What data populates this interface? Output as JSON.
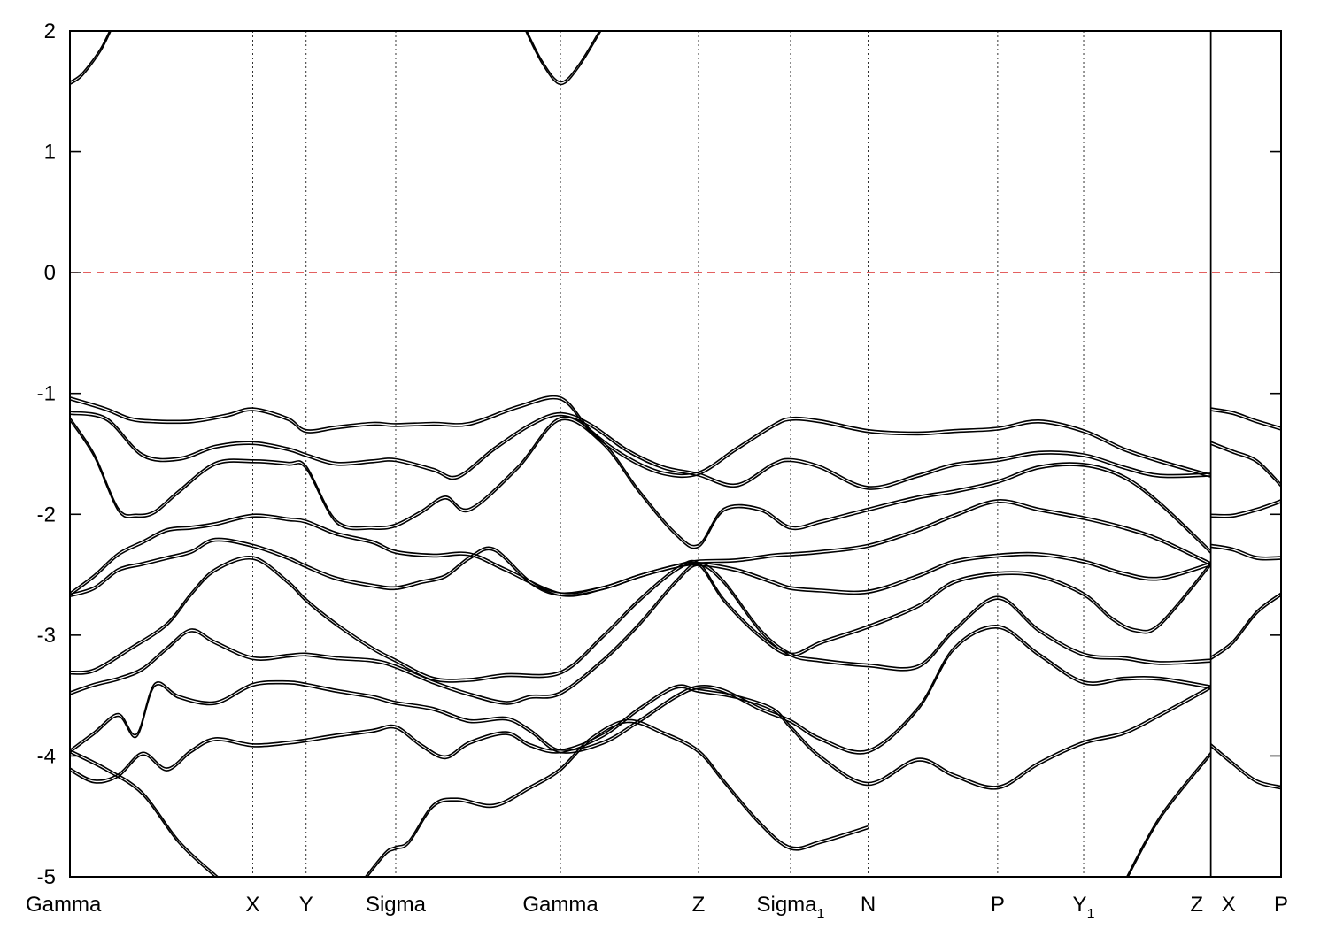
{
  "chart_data": {
    "type": "line",
    "title": "",
    "xlabel": "",
    "ylabel": "",
    "xlim": [
      0,
      1
    ],
    "ylim": [
      -5,
      2
    ],
    "y_ticks": [
      -5,
      -4,
      -3,
      -2,
      -1,
      0,
      1,
      2
    ],
    "grid": false,
    "fermi_level": 0,
    "colors": {
      "bands": "#000000",
      "fermi": "#d40000"
    },
    "high_symmetry_points": [
      {
        "label": "Gamma",
        "sub": "",
        "x": 0.0
      },
      {
        "label": "X",
        "sub": "",
        "x": 0.151
      },
      {
        "label": "Y",
        "sub": "",
        "x": 0.195
      },
      {
        "label": "Sigma",
        "sub": "",
        "x": 0.269
      },
      {
        "label": "Gamma",
        "sub": "",
        "x": 0.405
      },
      {
        "label": "Z",
        "sub": "",
        "x": 0.519
      },
      {
        "label": "Sigma",
        "sub": "1",
        "x": 0.595
      },
      {
        "label": "N",
        "sub": "",
        "x": 0.659
      },
      {
        "label": "P",
        "sub": "",
        "x": 0.766
      },
      {
        "label": "Y",
        "sub": "1",
        "x": 0.837
      },
      {
        "label": "Z",
        "sub": "",
        "x": 0.942
      },
      {
        "label": "X",
        "sub": "",
        "x": 0.942
      },
      {
        "label": "P",
        "sub": "",
        "x": 1.0
      }
    ],
    "discontinuity_x": 0.942,
    "series": [
      {
        "x": [
          0,
          0.03,
          0.05,
          0.07,
          0.1,
          0.13,
          0.151,
          0.18,
          0.195,
          0.22,
          0.25,
          0.269,
          0.3,
          0.33,
          0.37,
          0.405,
          0.43,
          0.46,
          0.49,
          0.519,
          0.55,
          0.58,
          0.595,
          0.62,
          0.659,
          0.7,
          0.73,
          0.766,
          0.8,
          0.837,
          0.87,
          0.9,
          0.942
        ],
        "y": [
          -1.03,
          -1.12,
          -1.2,
          -1.22,
          -1.22,
          -1.17,
          -1.12,
          -1.2,
          -1.3,
          -1.27,
          -1.24,
          -1.25,
          -1.24,
          -1.24,
          -1.1,
          -1.03,
          -1.3,
          -1.52,
          -1.65,
          -1.65,
          -1.45,
          -1.26,
          -1.2,
          -1.22,
          -1.3,
          -1.32,
          -1.3,
          -1.28,
          -1.22,
          -1.3,
          -1.45,
          -1.55,
          -1.67
        ]
      },
      {
        "x": [
          0,
          0.03,
          0.06,
          0.09,
          0.12,
          0.151,
          0.18,
          0.195,
          0.22,
          0.25,
          0.269,
          0.3,
          0.32,
          0.35,
          0.38,
          0.405,
          0.43,
          0.46,
          0.49,
          0.519,
          0.55,
          0.58,
          0.595,
          0.62,
          0.659,
          0.7,
          0.73,
          0.766,
          0.8,
          0.837,
          0.87,
          0.9,
          0.942
        ],
        "y": [
          -1.15,
          -1.2,
          -1.5,
          -1.53,
          -1.43,
          -1.4,
          -1.45,
          -1.5,
          -1.57,
          -1.55,
          -1.54,
          -1.62,
          -1.68,
          -1.45,
          -1.25,
          -1.16,
          -1.25,
          -1.46,
          -1.6,
          -1.66,
          -1.75,
          -1.58,
          -1.54,
          -1.6,
          -1.77,
          -1.67,
          -1.58,
          -1.54,
          -1.48,
          -1.5,
          -1.6,
          -1.67,
          -1.66
        ]
      },
      {
        "x": [
          0,
          0.02,
          0.04,
          0.055,
          0.07,
          0.09,
          0.12,
          0.151,
          0.18,
          0.195,
          0.22,
          0.25,
          0.269,
          0.29,
          0.31,
          0.33,
          0.37,
          0.405,
          0.44,
          0.47,
          0.5,
          0.519,
          0.54,
          0.57,
          0.595,
          0.62,
          0.659,
          0.7,
          0.73,
          0.766,
          0.8,
          0.837,
          0.87,
          0.9,
          0.942
        ],
        "y": [
          -1.2,
          -1.5,
          -1.95,
          -2.0,
          -1.97,
          -1.8,
          -1.57,
          -1.55,
          -1.57,
          -1.6,
          -2.05,
          -2.1,
          -2.08,
          -1.97,
          -1.85,
          -1.95,
          -1.6,
          -1.2,
          -1.4,
          -1.8,
          -2.15,
          -2.25,
          -1.95,
          -1.95,
          -2.1,
          -2.05,
          -1.95,
          -1.85,
          -1.8,
          -1.72,
          -1.6,
          -1.58,
          -1.68,
          -1.9,
          -2.3
        ]
      },
      {
        "x": [
          0,
          0.02,
          0.04,
          0.06,
          0.08,
          0.1,
          0.12,
          0.151,
          0.18,
          0.195,
          0.22,
          0.25,
          0.269,
          0.3,
          0.33,
          0.36,
          0.405,
          0.44,
          0.47,
          0.5,
          0.519,
          0.55,
          0.58,
          0.595,
          0.62,
          0.659,
          0.7,
          0.73,
          0.766,
          0.8,
          0.837,
          0.87,
          0.9,
          0.942
        ],
        "y": [
          -2.65,
          -2.5,
          -2.32,
          -2.22,
          -2.12,
          -2.1,
          -2.07,
          -2.0,
          -2.03,
          -2.05,
          -2.15,
          -2.22,
          -2.3,
          -2.33,
          -2.32,
          -2.45,
          -2.65,
          -2.6,
          -2.5,
          -2.42,
          -2.38,
          -2.37,
          -2.33,
          -2.32,
          -2.3,
          -2.25,
          -2.12,
          -2.0,
          -1.88,
          -1.95,
          -2.02,
          -2.1,
          -2.2,
          -2.4
        ]
      },
      {
        "x": [
          0,
          0.02,
          0.04,
          0.06,
          0.08,
          0.1,
          0.12,
          0.151,
          0.18,
          0.195,
          0.22,
          0.25,
          0.269,
          0.29,
          0.31,
          0.33,
          0.35,
          0.38,
          0.405,
          0.44,
          0.47,
          0.5,
          0.519,
          0.55,
          0.58,
          0.595,
          0.62,
          0.659,
          0.7,
          0.73,
          0.766,
          0.8,
          0.837,
          0.87,
          0.9,
          0.942
        ],
        "y": [
          -2.66,
          -2.6,
          -2.45,
          -2.4,
          -2.35,
          -2.3,
          -2.2,
          -2.25,
          -2.35,
          -2.42,
          -2.52,
          -2.58,
          -2.6,
          -2.55,
          -2.5,
          -2.35,
          -2.28,
          -2.55,
          -2.65,
          -2.6,
          -2.5,
          -2.42,
          -2.4,
          -2.45,
          -2.55,
          -2.6,
          -2.62,
          -2.63,
          -2.5,
          -2.38,
          -2.33,
          -2.32,
          -2.38,
          -2.48,
          -2.52,
          -2.4
        ]
      },
      {
        "x": [
          0,
          0.02,
          0.05,
          0.08,
          0.1,
          0.12,
          0.151,
          0.18,
          0.195,
          0.22,
          0.25,
          0.269,
          0.3,
          0.33,
          0.36,
          0.405,
          0.44,
          0.47,
          0.5,
          0.519,
          0.54,
          0.57,
          0.595,
          0.62,
          0.659,
          0.7,
          0.73,
          0.766,
          0.8,
          0.837,
          0.86,
          0.88,
          0.9,
          0.942
        ],
        "y": [
          -3.3,
          -3.28,
          -3.1,
          -2.9,
          -2.65,
          -2.45,
          -2.35,
          -2.55,
          -2.7,
          -2.9,
          -3.1,
          -3.2,
          -3.35,
          -3.36,
          -3.32,
          -3.3,
          -3.0,
          -2.7,
          -2.45,
          -2.4,
          -2.7,
          -3.0,
          -3.15,
          -3.05,
          -2.92,
          -2.75,
          -2.55,
          -2.48,
          -2.5,
          -2.65,
          -2.85,
          -2.95,
          -2.9,
          -2.4
        ]
      },
      {
        "x": [
          0,
          0.02,
          0.04,
          0.06,
          0.08,
          0.1,
          0.12,
          0.151,
          0.18,
          0.195,
          0.22,
          0.25,
          0.269,
          0.3,
          0.33,
          0.36,
          0.38,
          0.405,
          0.44,
          0.47,
          0.5,
          0.519,
          0.54,
          0.57,
          0.595,
          0.62,
          0.659,
          0.7,
          0.73,
          0.766,
          0.8,
          0.837,
          0.87,
          0.9,
          0.942
        ],
        "y": [
          -3.47,
          -3.4,
          -3.35,
          -3.27,
          -3.1,
          -2.95,
          -3.05,
          -3.18,
          -3.16,
          -3.15,
          -3.18,
          -3.2,
          -3.25,
          -3.38,
          -3.48,
          -3.55,
          -3.5,
          -3.47,
          -3.2,
          -2.9,
          -2.55,
          -2.4,
          -2.55,
          -2.95,
          -3.15,
          -3.2,
          -3.24,
          -3.25,
          -2.95,
          -2.68,
          -2.95,
          -3.15,
          -3.18,
          -3.22,
          -3.2
        ]
      },
      {
        "x": [
          0,
          0.02,
          0.04,
          0.055,
          0.07,
          0.09,
          0.12,
          0.151,
          0.18,
          0.195,
          0.22,
          0.25,
          0.269,
          0.3,
          0.33,
          0.36,
          0.38,
          0.405,
          0.44,
          0.47,
          0.5,
          0.519,
          0.54,
          0.57,
          0.595,
          0.62,
          0.659,
          0.7,
          0.73,
          0.766,
          0.8,
          0.837,
          0.87,
          0.9,
          0.942
        ],
        "y": [
          -3.95,
          -3.8,
          -3.65,
          -3.82,
          -3.4,
          -3.5,
          -3.55,
          -3.4,
          -3.38,
          -3.4,
          -3.45,
          -3.5,
          -3.55,
          -3.6,
          -3.7,
          -3.68,
          -3.78,
          -3.95,
          -3.88,
          -3.7,
          -3.5,
          -3.42,
          -3.45,
          -3.6,
          -3.7,
          -3.85,
          -3.95,
          -3.6,
          -3.1,
          -2.92,
          -3.15,
          -3.38,
          -3.35,
          -3.35,
          -3.42
        ]
      },
      {
        "x": [
          0,
          0.02,
          0.04,
          0.06,
          0.08,
          0.1,
          0.12,
          0.151,
          0.18,
          0.195,
          0.22,
          0.25,
          0.269,
          0.29,
          0.31,
          0.33,
          0.36,
          0.38,
          0.405,
          0.44,
          0.47,
          0.5,
          0.519,
          0.55,
          0.58,
          0.595,
          0.62,
          0.659,
          0.7,
          0.73,
          0.766,
          0.8,
          0.837,
          0.87,
          0.9,
          0.942
        ],
        "y": [
          -4.1,
          -4.2,
          -4.15,
          -3.97,
          -4.1,
          -3.95,
          -3.85,
          -3.9,
          -3.88,
          -3.86,
          -3.82,
          -3.78,
          -3.75,
          -3.9,
          -4.0,
          -3.88,
          -3.8,
          -3.9,
          -3.95,
          -3.82,
          -3.6,
          -3.42,
          -3.45,
          -3.5,
          -3.6,
          -3.75,
          -4.0,
          -4.22,
          -4.02,
          -4.15,
          -4.25,
          -4.05,
          -3.88,
          -3.8,
          -3.65,
          -3.42
        ]
      },
      {
        "x": [
          0,
          0.03,
          0.06,
          0.09,
          0.12,
          0.13
        ],
        "y": [
          -3.95,
          -4.1,
          -4.3,
          -4.7,
          -4.98,
          -5.05
        ]
      },
      {
        "x": [
          0.24,
          0.26,
          0.269,
          0.28,
          0.3,
          0.32,
          0.35,
          0.38,
          0.405,
          0.43,
          0.46,
          0.49,
          0.519,
          0.54,
          0.57,
          0.595,
          0.62,
          0.659
        ],
        "y": [
          -5.05,
          -4.8,
          -4.75,
          -4.7,
          -4.4,
          -4.35,
          -4.4,
          -4.25,
          -4.1,
          -3.85,
          -3.7,
          -3.8,
          -3.95,
          -4.2,
          -4.55,
          -4.75,
          -4.7,
          -4.58
        ]
      },
      {
        "x": [
          0.0,
          0.01,
          0.025,
          0.035
        ],
        "y": [
          1.58,
          1.65,
          1.85,
          2.05
        ]
      },
      {
        "x": [
          0.375,
          0.39,
          0.405,
          0.42,
          0.44
        ],
        "y": [
          2.05,
          1.75,
          1.58,
          1.72,
          2.05
        ]
      },
      {
        "x": [
          0.942,
          0.96,
          0.98,
          1.0
        ],
        "y": [
          -1.12,
          -1.15,
          -1.22,
          -1.28
        ]
      },
      {
        "x": [
          0.942,
          0.96,
          0.98,
          1.0
        ],
        "y": [
          -1.4,
          -1.47,
          -1.55,
          -1.75
        ]
      },
      {
        "x": [
          0.942,
          0.96,
          0.98,
          1.0
        ],
        "y": [
          -2.0,
          -2.0,
          -1.95,
          -1.88
        ]
      },
      {
        "x": [
          0.942,
          0.96,
          0.98,
          1.0
        ],
        "y": [
          -2.25,
          -2.28,
          -2.35,
          -2.35
        ]
      },
      {
        "x": [
          0.942,
          0.96,
          0.98,
          1.0
        ],
        "y": [
          -3.18,
          -3.05,
          -2.8,
          -2.65
        ]
      },
      {
        "x": [
          0.942,
          0.96,
          0.98,
          1.0
        ],
        "y": [
          -3.9,
          -4.05,
          -4.2,
          -4.25
        ]
      },
      {
        "x": [
          0.87,
          0.9,
          0.942
        ],
        "y": [
          -5.05,
          -4.5,
          -3.97
        ]
      }
    ]
  }
}
